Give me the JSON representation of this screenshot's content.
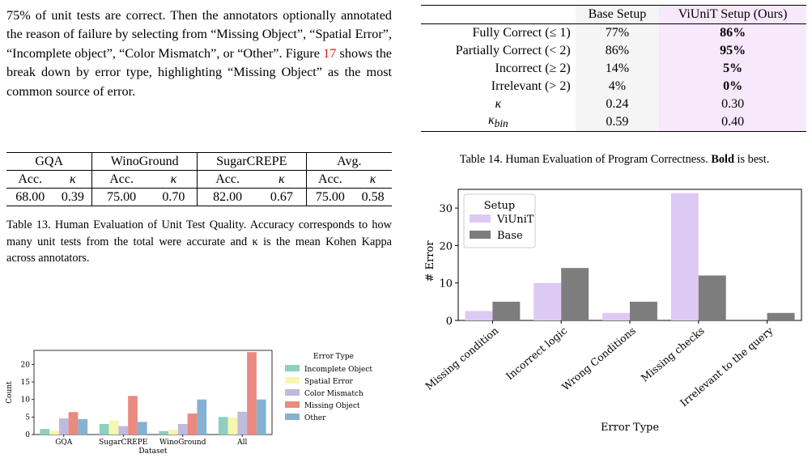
{
  "paragraph": {
    "text_before_ref": "75% of unit tests are correct. Then the annotators optionally annotated the reason of failure by selecting from “Missing Object”, “Spatial Error”, “Incomplete object”, “Color Mismatch”, or “Other”. Figure ",
    "ref": "17",
    "text_after_ref": " shows the break down by error type, highlighting “Missing Object” as the most common source of error."
  },
  "table13": {
    "groups": [
      "GQA",
      "WinoGround",
      "SugarCREPE",
      "Avg."
    ],
    "acc_label": "Acc.",
    "kappa_label": "κ",
    "values": [
      {
        "acc": "68.00",
        "kappa": "0.39"
      },
      {
        "acc": "75.00",
        "kappa": "0.70"
      },
      {
        "acc": "82.00",
        "kappa": "0.67"
      },
      {
        "acc": "75.00",
        "kappa": "0.58"
      }
    ],
    "caption": "Table 13. Human Evaluation of Unit Test Quality. Accuracy corresponds to how many unit tests from the total were accurate and κ is the mean Kohen Kappa across annotators."
  },
  "table14": {
    "headers": [
      "",
      "Base Setup",
      "ViUniT Setup (Ours)"
    ],
    "rows": [
      {
        "label": "Fully Correct (≤ 1)",
        "base": "77%",
        "ours": "86%"
      },
      {
        "label": "Partially Correct (< 2)",
        "base": "86%",
        "ours": "95%"
      },
      {
        "label": "Incorrect (≥ 2)",
        "base": "14%",
        "ours": "5%"
      },
      {
        "label": "Irrelevant (> 2)",
        "base": "4%",
        "ours": "0%"
      },
      {
        "label": "κ",
        "base": "0.24",
        "ours": "0.30"
      },
      {
        "label_main": "κ",
        "label_sub": "bin",
        "base": "0.59",
        "ours": "0.40"
      }
    ],
    "caption_before": "Table 14. Human Evaluation of Program Correctness. ",
    "caption_bold": "Bold",
    "caption_after": " is best."
  },
  "chart_data": [
    {
      "type": "bar",
      "xlabel": "Dataset",
      "ylabel": "Count",
      "ylim": [
        0,
        24
      ],
      "yticks": [
        0,
        5,
        10,
        15,
        20
      ],
      "categories": [
        "GQA",
        "SugarCREPE",
        "WinoGround",
        "All"
      ],
      "legend_title": "Error Type",
      "legend_position": "right",
      "series": [
        {
          "name": "Incomplete Object",
          "color": "#8fcfbf",
          "values": [
            1.6,
            3.0,
            1.0,
            5.0
          ]
        },
        {
          "name": "Spatial Error",
          "color": "#f6f6b0",
          "values": [
            1.0,
            4.0,
            1.4,
            4.8
          ]
        },
        {
          "name": "Color Mismatch",
          "color": "#c0bade",
          "values": [
            4.6,
            2.4,
            3.0,
            6.5
          ]
        },
        {
          "name": "Missing Object",
          "color": "#ea8a80",
          "values": [
            6.4,
            11.0,
            6.0,
            23.5
          ]
        },
        {
          "name": "Other",
          "color": "#85b2d3",
          "values": [
            4.4,
            3.6,
            10.0,
            10.0
          ]
        }
      ]
    },
    {
      "type": "bar",
      "xlabel": "Error Type",
      "ylabel": "# Error",
      "ylim": [
        0,
        35
      ],
      "yticks": [
        0,
        10,
        20,
        30
      ],
      "categories": [
        "Missing condition",
        "Incorrect logic",
        "Wrong Conditions",
        "Missing checks",
        "Irrelevant to the query"
      ],
      "legend_title": "Setup",
      "legend_position": "top-left",
      "series": [
        {
          "name": "ViUniT",
          "color": "#dccaf4",
          "values": [
            2.5,
            10,
            2,
            34,
            0
          ]
        },
        {
          "name": "Base",
          "color": "#7d7d7d",
          "values": [
            5,
            14,
            5,
            12,
            2
          ]
        }
      ]
    }
  ]
}
